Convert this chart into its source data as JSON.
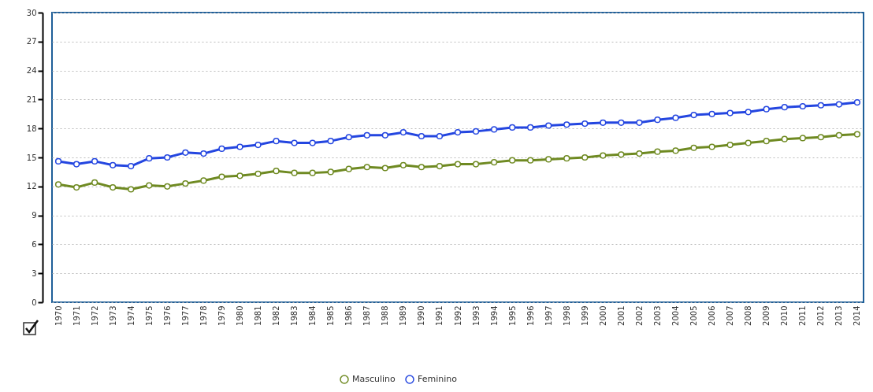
{
  "chart_data": {
    "type": "line",
    "categories": [
      "1970",
      "1971",
      "1972",
      "1973",
      "1974",
      "1975",
      "1976",
      "1977",
      "1978",
      "1979",
      "1980",
      "1981",
      "1982",
      "1983",
      "1984",
      "1985",
      "1986",
      "1987",
      "1988",
      "1989",
      "1990",
      "1991",
      "1992",
      "1993",
      "1994",
      "1995",
      "1996",
      "1997",
      "1998",
      "1999",
      "2000",
      "2001",
      "2002",
      "2003",
      "2004",
      "2005",
      "2006",
      "2007",
      "2008",
      "2009",
      "2010",
      "2011",
      "2012",
      "2013",
      "2014"
    ],
    "series": [
      {
        "name": "Masculino",
        "color": "#6f8a22",
        "values": [
          12.2,
          11.9,
          12.4,
          11.9,
          11.7,
          12.1,
          12.0,
          12.3,
          12.6,
          13.0,
          13.1,
          13.3,
          13.6,
          13.4,
          13.4,
          13.5,
          13.8,
          14.0,
          13.9,
          14.2,
          14.0,
          14.1,
          14.3,
          14.3,
          14.5,
          14.7,
          14.7,
          14.8,
          14.9,
          15.0,
          15.2,
          15.3,
          15.4,
          15.6,
          15.7,
          16.0,
          16.1,
          16.3,
          16.5,
          16.7,
          16.9,
          17.0,
          17.1,
          17.3,
          17.4
        ]
      },
      {
        "name": "Feminino",
        "color": "#2446e0",
        "values": [
          14.6,
          14.3,
          14.6,
          14.2,
          14.1,
          14.9,
          15.0,
          15.5,
          15.4,
          15.9,
          16.1,
          16.3,
          16.7,
          16.5,
          16.5,
          16.7,
          17.1,
          17.3,
          17.3,
          17.6,
          17.2,
          17.2,
          17.6,
          17.7,
          17.9,
          18.1,
          18.1,
          18.3,
          18.4,
          18.5,
          18.6,
          18.6,
          18.6,
          18.9,
          19.1,
          19.4,
          19.5,
          19.6,
          19.7,
          20.0,
          20.2,
          20.3,
          20.4,
          20.5,
          20.7
        ]
      }
    ],
    "ylim": [
      0,
      30
    ],
    "yticks": [
      0,
      3,
      6,
      9,
      12,
      15,
      18,
      21,
      24,
      27,
      30
    ],
    "grid": "y",
    "legend": "bottom",
    "marker": "circle",
    "line_style": "solid"
  }
}
